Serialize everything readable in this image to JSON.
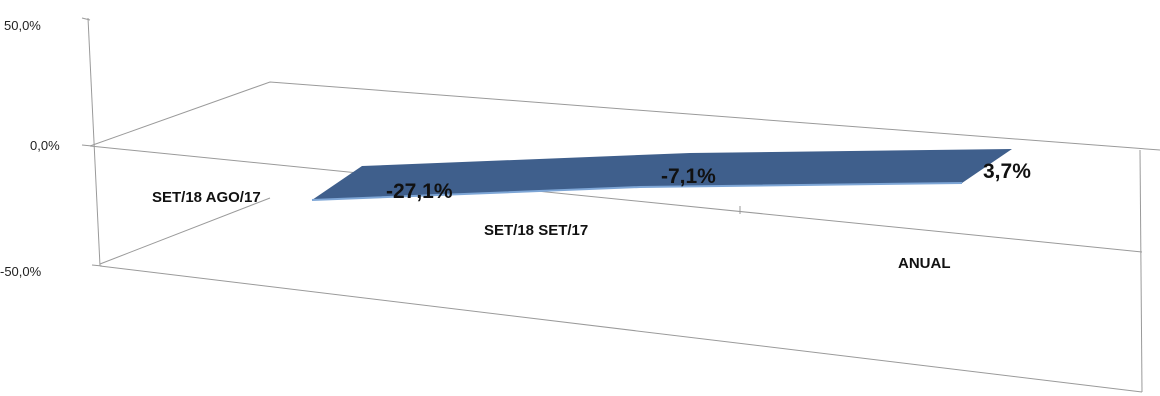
{
  "chart_data": {
    "type": "area",
    "title": "",
    "xlabel": "",
    "ylabel": "",
    "categories": [
      "SET/18 AGO/17",
      "SET/18 SET/17",
      "ANUAL"
    ],
    "values": [
      -27.1,
      -7.1,
      3.7
    ],
    "value_labels": [
      "-27,1%",
      "-7,1%",
      "3,7%"
    ],
    "yticks": [
      "50,0%",
      "0,0%",
      "-50,0%"
    ],
    "ylim": [
      -50,
      50
    ],
    "grid": true,
    "legend": "none",
    "colors": {
      "series": "#3f5f8c",
      "series_edge": "#7ea6d6",
      "walls": "#9a9a9a"
    }
  }
}
